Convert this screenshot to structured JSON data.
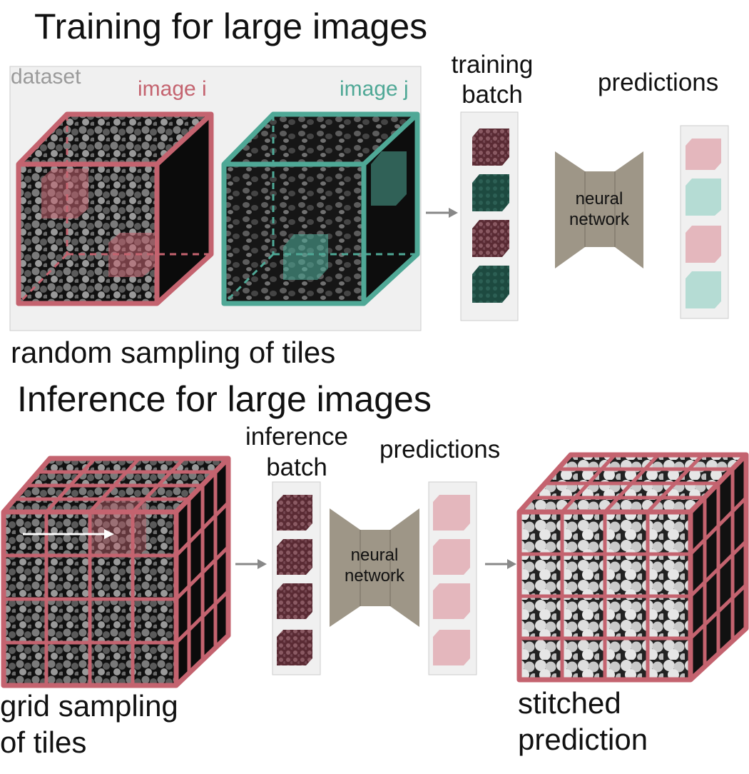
{
  "training": {
    "title": "Training for large images",
    "dataset_label": "dataset",
    "image_i_label": "image i",
    "image_j_label": "image j",
    "batch_label_line1": "training",
    "batch_label_line2": "batch",
    "network_line1": "neural",
    "network_line2": "network",
    "predictions_label": "predictions",
    "caption": "random sampling of tiles"
  },
  "inference": {
    "title": "Inference for large images",
    "batch_label_line1": "inference",
    "batch_label_line2": "batch",
    "network_line1": "neural",
    "network_line2": "network",
    "predictions_label": "predictions",
    "caption_left_line1": "grid sampling",
    "caption_left_line2": "of tiles",
    "caption_right_line1": "stitched",
    "caption_right_line2": "prediction"
  },
  "colors": {
    "image_i": "#c4636f",
    "image_j": "#4fa896",
    "tile_i_dark": "#5a2b34",
    "tile_j_dark": "#1d4a40",
    "pred_i": "#e4b7bd",
    "pred_j": "#b5dcd4",
    "network": "#9e9687",
    "panel_bg": "#f0f0f0",
    "arrow": "#888888"
  }
}
